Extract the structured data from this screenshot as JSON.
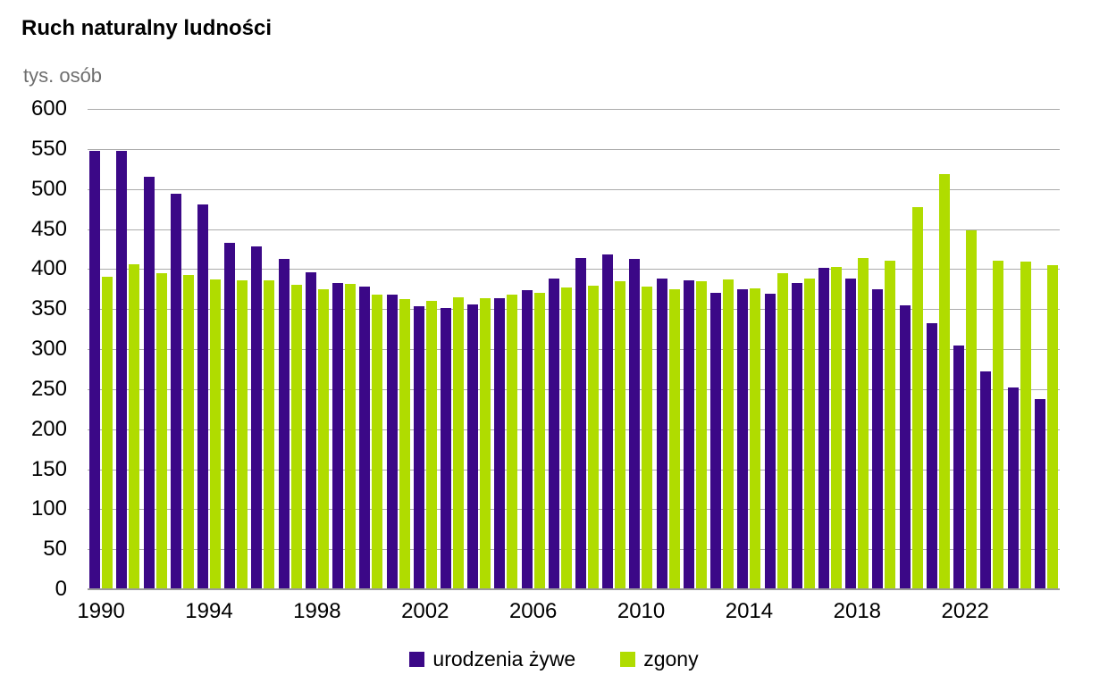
{
  "header": {
    "title": "Ruch naturalny ludności",
    "unit_label": "tys. osób"
  },
  "legend": {
    "items": [
      {
        "label": "urodzenia żywe",
        "color": "#3B0887"
      },
      {
        "label": "zgony",
        "color": "#B0DC00"
      }
    ]
  },
  "chart_data": {
    "type": "bar",
    "title": "Ruch naturalny ludności",
    "ylabel": "tys. osób",
    "xlabel": "",
    "ylim": [
      0,
      600
    ],
    "ytick_step": 50,
    "grid": true,
    "grid_color": "#ABABAB",
    "axis_color": "#9B9B9B",
    "legend_position": "bottom",
    "categories": [
      "1990",
      "1991",
      "1992",
      "1993",
      "1994",
      "1995",
      "1996",
      "1997",
      "1998",
      "1999",
      "2000",
      "2001",
      "2002",
      "2003",
      "2004",
      "2005",
      "2006",
      "2007",
      "2008",
      "2009",
      "2010",
      "2011",
      "2012",
      "2013",
      "2014",
      "2015",
      "2016",
      "2017",
      "2018",
      "2019",
      "2020",
      "2021",
      "2022",
      "2023",
      "2024",
      "2025"
    ],
    "x_axis_labeled_ticks": [
      "1990",
      "1994",
      "1998",
      "2002",
      "2006",
      "2010",
      "2014",
      "2018",
      "2022"
    ],
    "series": [
      {
        "name": "urodzenia żywe",
        "color": "#3B0887",
        "values": [
          548,
          548,
          515,
          494,
          481,
          433,
          428,
          413,
          396,
          382,
          378,
          368,
          354,
          351,
          356,
          364,
          374,
          388,
          414,
          418,
          413,
          388,
          386,
          370,
          375,
          369,
          382,
          402,
          388,
          375,
          355,
          332,
          305,
          272,
          252,
          238
        ]
      },
      {
        "name": "zgony",
        "color": "#B0DC00",
        "values": [
          390,
          406,
          395,
          393,
          387,
          386,
          386,
          380,
          375,
          381,
          368,
          363,
          360,
          365,
          364,
          368,
          370,
          377,
          379,
          385,
          378,
          375,
          385,
          387,
          376,
          395,
          388,
          403,
          414,
          410,
          477,
          519,
          448,
          410,
          409,
          405
        ]
      }
    ]
  }
}
